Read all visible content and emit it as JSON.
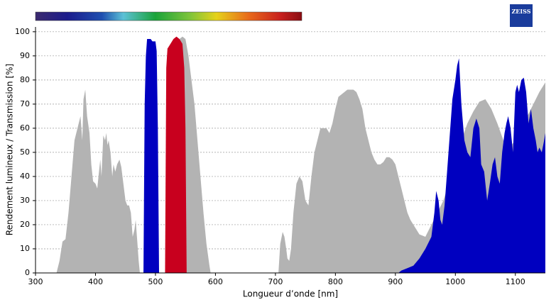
{
  "chart_data": {
    "type": "area",
    "logo": "ZEISS",
    "xlabel": "Longueur d’onde [nm]",
    "ylabel": "Rendement lumineux / Transmission [%]",
    "xlim": [
      300,
      1150
    ],
    "ylim": [
      0,
      102
    ],
    "xticks": [
      300,
      400,
      500,
      600,
      700,
      800,
      900,
      1000,
      1100
    ],
    "yticks": [
      0,
      10,
      20,
      30,
      40,
      50,
      60,
      70,
      80,
      90,
      100
    ],
    "grid": true,
    "series": [
      {
        "color": "#b3b3b3",
        "x": [
          335,
          340,
          345,
          350,
          355,
          360,
          365,
          370,
          375,
          378,
          380,
          383,
          386,
          390,
          393,
          396,
          400,
          403,
          405,
          408,
          410,
          413,
          416,
          418,
          420,
          422,
          425,
          428,
          430,
          433,
          436,
          440,
          443,
          446,
          450,
          453,
          456,
          459,
          462,
          465,
          467,
          470,
          472,
          474,
          495,
          518,
          519,
          522,
          525,
          530,
          535,
          540,
          545,
          550,
          555,
          560,
          565,
          570,
          575,
          580,
          585,
          590,
          592,
          650,
          705,
          708,
          712,
          715,
          718,
          720,
          723,
          726,
          730,
          735,
          740,
          745,
          750,
          755,
          760,
          765,
          770,
          775,
          780,
          785,
          790,
          795,
          800,
          805,
          810,
          815,
          820,
          830,
          835,
          840,
          845,
          850,
          855,
          860,
          865,
          870,
          875,
          880,
          885,
          890,
          895,
          900,
          905,
          910,
          915,
          920,
          925,
          930,
          935,
          940,
          950,
          960,
          970,
          980,
          990,
          1000,
          1010,
          1020,
          1030,
          1040,
          1050,
          1060,
          1070,
          1080,
          1090,
          1100,
          1110,
          1120,
          1130,
          1140,
          1150
        ],
        "values": [
          0,
          5,
          13,
          14,
          25,
          40,
          55,
          60,
          65,
          55,
          72,
          76,
          65,
          58,
          45,
          38,
          37,
          35,
          40,
          47,
          40,
          57,
          55,
          58,
          53,
          55,
          50,
          40,
          45,
          42,
          45,
          47,
          44,
          38,
          30,
          28,
          28,
          25,
          15,
          18,
          22,
          12,
          5,
          0,
          null,
          0,
          55,
          80,
          85,
          92,
          95,
          97,
          98,
          97,
          90,
          80,
          70,
          55,
          40,
          25,
          12,
          3,
          0,
          null,
          0,
          12,
          17,
          15,
          10,
          6,
          5,
          10,
          25,
          37,
          40,
          38,
          30,
          28,
          40,
          50,
          55,
          60,
          60,
          60,
          58,
          62,
          68,
          73,
          74,
          75,
          76,
          76,
          75,
          72,
          68,
          60,
          55,
          50,
          47,
          45,
          45,
          46,
          48,
          48,
          47,
          45,
          40,
          35,
          30,
          25,
          22,
          20,
          18,
          16,
          15,
          20,
          25,
          30,
          38,
          45,
          55,
          62,
          67,
          71,
          72,
          68,
          62,
          55,
          52,
          55,
          60,
          65,
          70,
          75,
          79
        ]
      },
      {
        "color": "#0000c0",
        "x": [
          480,
          482,
          484,
          486,
          492,
          495,
          497,
          500,
          502,
          504,
          506,
          700,
          905,
          910,
          920,
          930,
          940,
          950,
          960,
          965,
          968,
          972,
          975,
          978,
          982,
          985,
          990,
          995,
          1000,
          1003,
          1006,
          1010,
          1015,
          1020,
          1025,
          1030,
          1035,
          1040,
          1043,
          1048,
          1053,
          1058,
          1062,
          1066,
          1070,
          1074,
          1078,
          1082,
          1085,
          1088,
          1092,
          1096,
          1100,
          1103,
          1106,
          1110,
          1114,
          1118,
          1122,
          1126,
          1130,
          1134,
          1137,
          1140,
          1144,
          1148,
          1150
        ],
        "values": [
          0,
          70,
          90,
          97,
          97,
          96,
          96,
          96,
          92,
          60,
          0,
          null,
          0,
          1,
          2,
          3,
          6,
          10,
          15,
          25,
          34,
          30,
          22,
          20,
          28,
          38,
          55,
          72,
          80,
          86,
          89,
          70,
          55,
          50,
          48,
          60,
          64,
          60,
          45,
          42,
          30,
          38,
          45,
          48,
          40,
          37,
          50,
          58,
          62,
          65,
          60,
          50,
          75,
          78,
          75,
          80,
          81,
          75,
          62,
          68,
          60,
          55,
          50,
          52,
          50,
          55,
          58
        ]
      },
      {
        "color": "#c8001e",
        "x": [
          516,
          518,
          520,
          525,
          530,
          535,
          540,
          545,
          548,
          550,
          552
        ],
        "values": [
          0,
          85,
          93,
          95,
          97,
          98,
          97,
          95,
          85,
          60,
          0
        ]
      }
    ]
  }
}
